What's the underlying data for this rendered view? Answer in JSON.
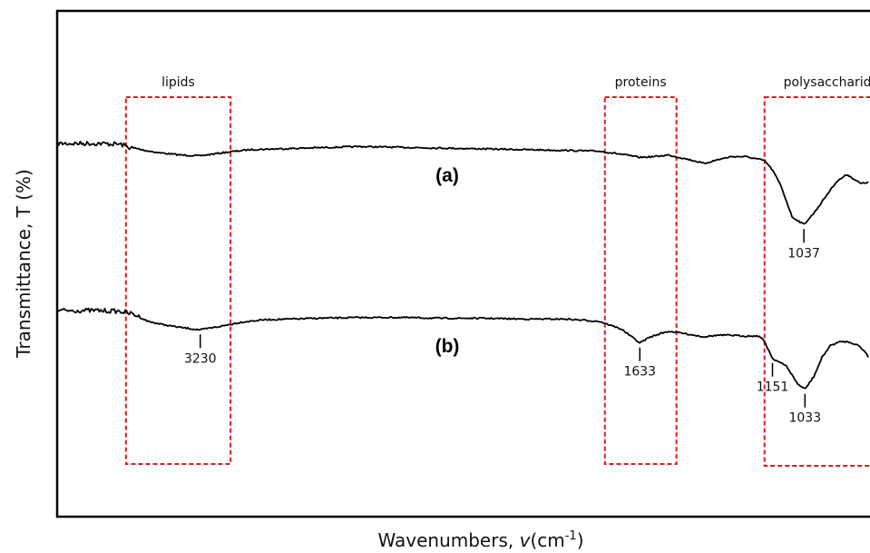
{
  "chart_data": {
    "type": "line",
    "title": "",
    "xlabel": "Wavenumbers, ",
    "xlabel_symbol": "v",
    "xlabel_unit": "(cm",
    "xlabel_unit_sup": "-1",
    "xlabel_unit_close": ")",
    "ylabel": "Transmittance, T (%)",
    "xlim": [
      3750,
      800
    ],
    "ticks_shown": false,
    "grid": false,
    "legend": "none",
    "colors": {
      "trace": "#000000",
      "region": "#e01b1b"
    },
    "regions": [
      {
        "label": "lipids",
        "x_start": 3500,
        "x_end": 3120
      },
      {
        "label": "proteins",
        "x_start": 1760,
        "x_end": 1500
      },
      {
        "label": "polysaccharides",
        "x_start": 1180,
        "x_end": 670
      }
    ],
    "series": [
      {
        "name": "(a)",
        "points": [
          [
            3750,
            0.0
          ],
          [
            3600,
            0.0
          ],
          [
            3520,
            0.01
          ],
          [
            3480,
            0.06
          ],
          [
            3430,
            0.09
          ],
          [
            3380,
            0.12
          ],
          [
            3300,
            0.15
          ],
          [
            3230,
            0.16
          ],
          [
            3150,
            0.12
          ],
          [
            3050,
            0.08
          ],
          [
            2950,
            0.07
          ],
          [
            2850,
            0.06
          ],
          [
            2750,
            0.05
          ],
          [
            2650,
            0.04
          ],
          [
            2500,
            0.05
          ],
          [
            2350,
            0.06
          ],
          [
            2200,
            0.07
          ],
          [
            2050,
            0.08
          ],
          [
            1900,
            0.09
          ],
          [
            1780,
            0.1
          ],
          [
            1700,
            0.14
          ],
          [
            1633,
            0.18
          ],
          [
            1580,
            0.17
          ],
          [
            1530,
            0.15
          ],
          [
            1490,
            0.18
          ],
          [
            1440,
            0.22
          ],
          [
            1400,
            0.26
          ],
          [
            1350,
            0.21
          ],
          [
            1300,
            0.17
          ],
          [
            1250,
            0.17
          ],
          [
            1180,
            0.22
          ],
          [
            1150,
            0.35
          ],
          [
            1120,
            0.55
          ],
          [
            1080,
            0.95
          ],
          [
            1037,
            1.05
          ],
          [
            1000,
            0.9
          ],
          [
            960,
            0.7
          ],
          [
            920,
            0.5
          ],
          [
            880,
            0.4
          ],
          [
            860,
            0.45
          ],
          [
            830,
            0.52
          ],
          [
            800,
            0.5
          ]
        ]
      },
      {
        "name": "(b)",
        "points": [
          [
            3750,
            0.0
          ],
          [
            3600,
            0.0
          ],
          [
            3520,
            0.01
          ],
          [
            3470,
            0.05
          ],
          [
            3420,
            0.14
          ],
          [
            3370,
            0.18
          ],
          [
            3300,
            0.22
          ],
          [
            3230,
            0.25
          ],
          [
            3150,
            0.2
          ],
          [
            3080,
            0.15
          ],
          [
            3000,
            0.12
          ],
          [
            2900,
            0.11
          ],
          [
            2800,
            0.1
          ],
          [
            2650,
            0.09
          ],
          [
            2500,
            0.09
          ],
          [
            2350,
            0.1
          ],
          [
            2200,
            0.1
          ],
          [
            2050,
            0.11
          ],
          [
            1900,
            0.11
          ],
          [
            1780,
            0.14
          ],
          [
            1700,
            0.24
          ],
          [
            1633,
            0.42
          ],
          [
            1600,
            0.35
          ],
          [
            1560,
            0.3
          ],
          [
            1530,
            0.27
          ],
          [
            1500,
            0.28
          ],
          [
            1450,
            0.31
          ],
          [
            1400,
            0.34
          ],
          [
            1350,
            0.32
          ],
          [
            1300,
            0.32
          ],
          [
            1250,
            0.33
          ],
          [
            1200,
            0.33
          ],
          [
            1180,
            0.4
          ],
          [
            1151,
            0.62
          ],
          [
            1100,
            0.72
          ],
          [
            1060,
            0.95
          ],
          [
            1033,
            1.02
          ],
          [
            1000,
            0.85
          ],
          [
            970,
            0.6
          ],
          [
            940,
            0.45
          ],
          [
            900,
            0.4
          ],
          [
            870,
            0.41
          ],
          [
            840,
            0.45
          ],
          [
            810,
            0.55
          ],
          [
            800,
            0.62
          ]
        ]
      }
    ],
    "peaks": [
      {
        "series": "(a)",
        "x": 1037,
        "label": "1037"
      },
      {
        "series": "(b)",
        "x": 3230,
        "label": "3230"
      },
      {
        "series": "(b)",
        "x": 1633,
        "label": "1633"
      },
      {
        "series": "(b)",
        "x": 1151,
        "label": "1151"
      },
      {
        "series": "(b)",
        "x": 1033,
        "label": "1033"
      }
    ]
  }
}
